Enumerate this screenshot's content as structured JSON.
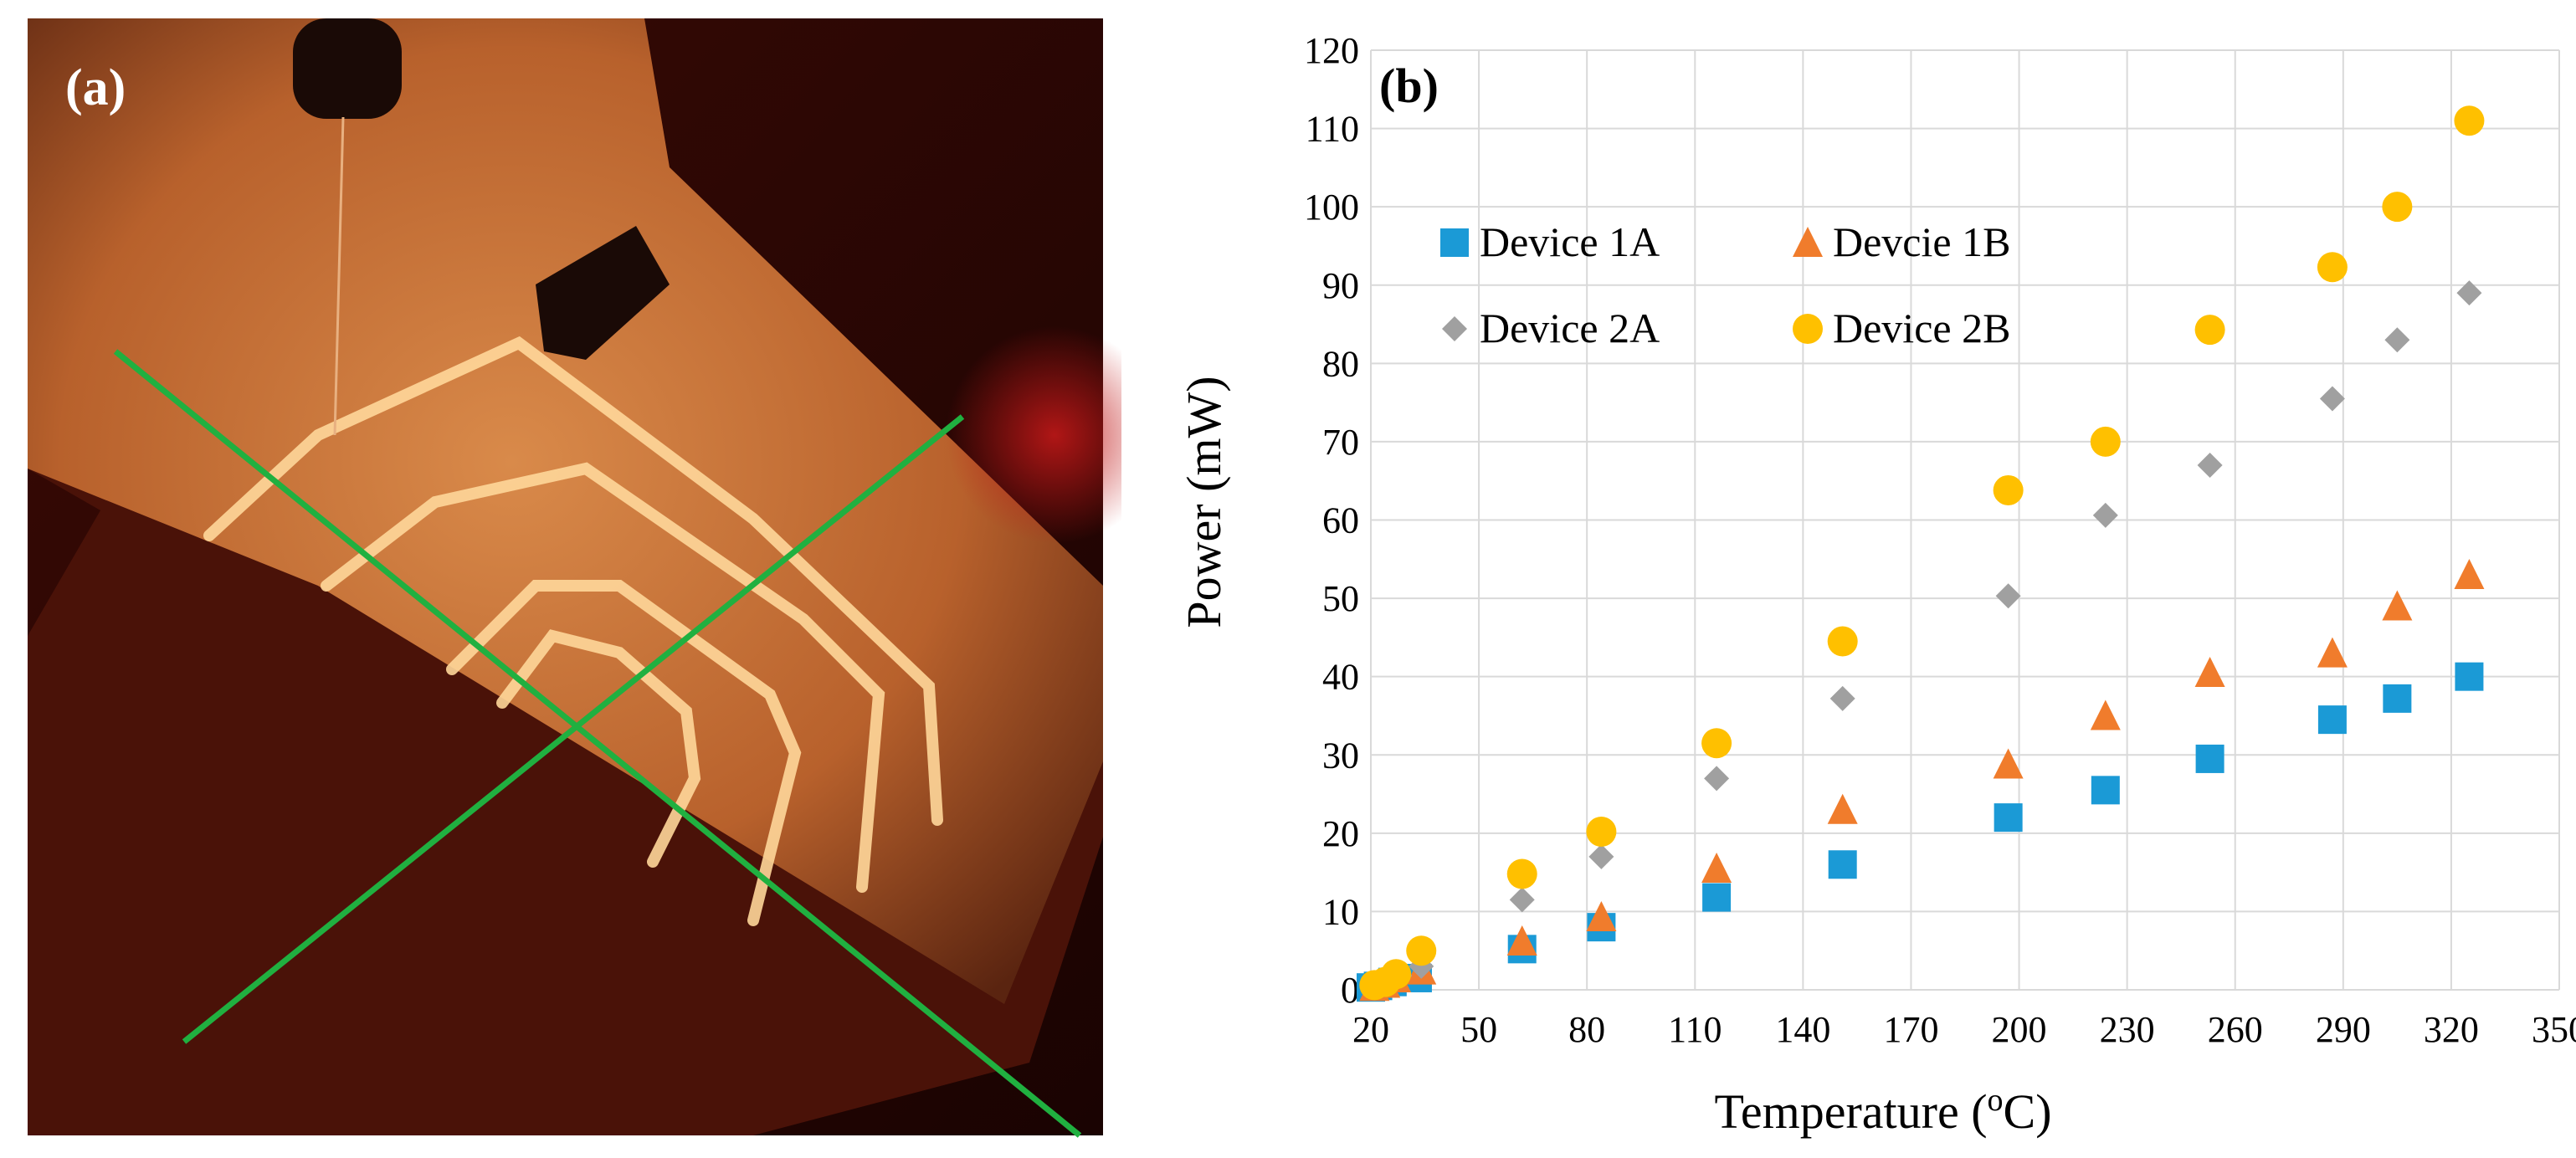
{
  "panel_a": {
    "label": "(a)",
    "description_icon": "microheater-photo-icon"
  },
  "chart_data": {
    "type": "scatter",
    "panel_label": "(b)",
    "title": "",
    "xlabel": "Temperature (",
    "xlabel_sup": "o",
    "xlabel_end": "C)",
    "ylabel": "Power (mW)",
    "xlim": [
      20,
      350
    ],
    "ylim": [
      0,
      120
    ],
    "xticks": [
      20,
      50,
      80,
      110,
      140,
      170,
      200,
      230,
      260,
      290,
      320,
      350
    ],
    "yticks": [
      0,
      10,
      20,
      30,
      40,
      50,
      60,
      70,
      80,
      90,
      100,
      110,
      120
    ],
    "grid": true,
    "legend_position": "top-left",
    "series": [
      {
        "name": "Device 1A",
        "marker": "square",
        "color": "#1b9ad6",
        "points": [
          [
            20,
            0.3
          ],
          [
            22,
            0.5
          ],
          [
            26,
            1
          ],
          [
            33,
            1.5
          ],
          [
            62,
            5.2
          ],
          [
            84,
            8
          ],
          [
            116,
            11.8
          ],
          [
            151,
            16
          ],
          [
            197,
            22
          ],
          [
            224,
            25.5
          ],
          [
            253,
            29.5
          ],
          [
            287,
            34.5
          ],
          [
            305,
            37.2
          ],
          [
            325,
            40
          ]
        ]
      },
      {
        "name": "Devcie 1B",
        "marker": "triangle",
        "color": "#f07c2c",
        "points": [
          [
            21,
            0.4
          ],
          [
            24,
            0.8
          ],
          [
            27,
            1.5
          ],
          [
            34,
            2.5
          ],
          [
            62,
            6.2
          ],
          [
            84,
            9.3
          ],
          [
            116,
            15.5
          ],
          [
            151,
            23
          ],
          [
            197,
            28.8
          ],
          [
            224,
            35
          ],
          [
            253,
            40.5
          ],
          [
            287,
            43
          ],
          [
            305,
            49
          ],
          [
            325,
            53
          ]
        ]
      },
      {
        "name": "Device 2A",
        "marker": "diamond",
        "color": "#a0a0a0",
        "points": [
          [
            21,
            0.5
          ],
          [
            24,
            1
          ],
          [
            28,
            1.8
          ],
          [
            34,
            3
          ],
          [
            62,
            11.5
          ],
          [
            84,
            17
          ],
          [
            116,
            27
          ],
          [
            151,
            37.2
          ],
          [
            197,
            50.3
          ],
          [
            224,
            60.6
          ],
          [
            253,
            67
          ],
          [
            287,
            75.5
          ],
          [
            305,
            83
          ],
          [
            325,
            89
          ]
        ]
      },
      {
        "name": "Device 2B",
        "marker": "circle",
        "color": "#ffc000",
        "points": [
          [
            21,
            0.6
          ],
          [
            24,
            1
          ],
          [
            27,
            2
          ],
          [
            34,
            5
          ],
          [
            62,
            14.8
          ],
          [
            84,
            20.2
          ],
          [
            116,
            31.5
          ],
          [
            151,
            44.5
          ],
          [
            197,
            63.8
          ],
          [
            224,
            70
          ],
          [
            253,
            84.3
          ],
          [
            287,
            92.3
          ],
          [
            305,
            100
          ],
          [
            325,
            111
          ]
        ]
      }
    ]
  }
}
